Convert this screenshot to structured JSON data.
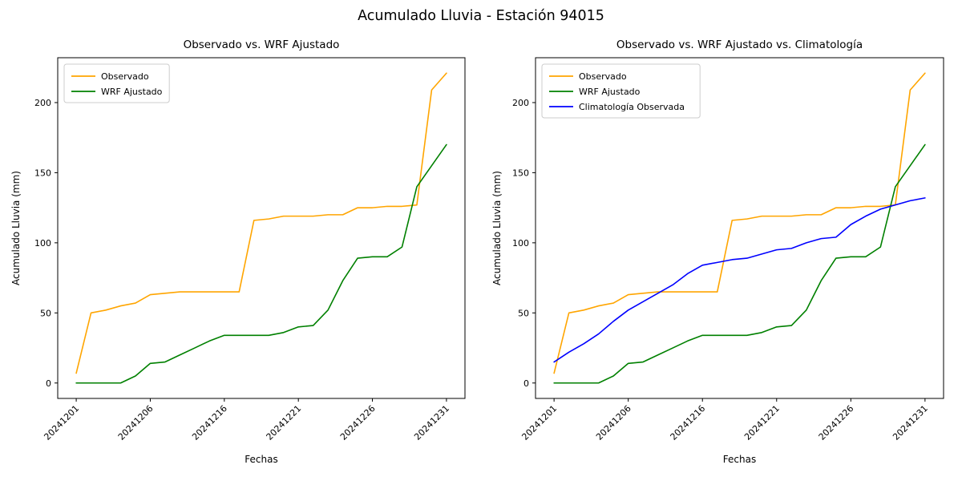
{
  "figure": {
    "title": "Acumulado Lluvia - Estación 94015",
    "background": "#ffffff"
  },
  "chart_data": [
    {
      "type": "line",
      "title": "Observado vs. WRF Ajustado",
      "xlabel": "Fechas",
      "ylabel": "Acumulado Lluvia (mm)",
      "legend_position": "upper left",
      "grid": false,
      "xlim": [
        -1.25,
        26.25
      ],
      "ylim": [
        -11,
        232
      ],
      "y_ticks": [
        0,
        50,
        100,
        150,
        200
      ],
      "x_tick_positions": [
        0,
        5,
        10,
        15,
        20,
        25
      ],
      "x_tick_labels": [
        "20241201",
        "20241206",
        "20241216",
        "20241221",
        "20241226",
        "20241231"
      ],
      "series": [
        {
          "name": "Observado",
          "color": "#ffa500",
          "values": [
            7,
            50,
            52,
            55,
            57,
            63,
            64,
            65,
            65,
            65,
            65,
            65,
            116,
            117,
            119,
            119,
            119,
            120,
            120,
            125,
            125,
            126,
            126,
            127,
            209,
            221
          ]
        },
        {
          "name": "WRF Ajustado",
          "color": "#008000",
          "values": [
            0,
            0,
            0,
            0,
            5,
            14,
            15,
            20,
            25,
            30,
            34,
            34,
            34,
            34,
            36,
            40,
            41,
            52,
            73,
            89,
            90,
            90,
            97,
            140,
            155,
            170
          ]
        }
      ]
    },
    {
      "type": "line",
      "title": "Observado vs. WRF Ajustado vs. Climatología",
      "xlabel": "Fechas",
      "ylabel": "Acumulado Lluvia (mm)",
      "legend_position": "upper left",
      "grid": false,
      "xlim": [
        -1.25,
        26.25
      ],
      "ylim": [
        -11,
        232
      ],
      "y_ticks": [
        0,
        50,
        100,
        150,
        200
      ],
      "x_tick_positions": [
        0,
        5,
        10,
        15,
        20,
        25
      ],
      "x_tick_labels": [
        "20241201",
        "20241206",
        "20241216",
        "20241221",
        "20241226",
        "20241231"
      ],
      "series": [
        {
          "name": "Observado",
          "color": "#ffa500",
          "values": [
            7,
            50,
            52,
            55,
            57,
            63,
            64,
            65,
            65,
            65,
            65,
            65,
            116,
            117,
            119,
            119,
            119,
            120,
            120,
            125,
            125,
            126,
            126,
            127,
            209,
            221
          ]
        },
        {
          "name": "WRF Ajustado",
          "color": "#008000",
          "values": [
            0,
            0,
            0,
            0,
            5,
            14,
            15,
            20,
            25,
            30,
            34,
            34,
            34,
            34,
            36,
            40,
            41,
            52,
            73,
            89,
            90,
            90,
            97,
            140,
            155,
            170
          ]
        },
        {
          "name": "Climatología Observada",
          "color": "#0000ff",
          "values": [
            15,
            22,
            28,
            35,
            44,
            52,
            58,
            64,
            70,
            78,
            84,
            86,
            88,
            89,
            92,
            95,
            96,
            100,
            103,
            104,
            113,
            119,
            124,
            127,
            130,
            132
          ]
        }
      ]
    }
  ]
}
